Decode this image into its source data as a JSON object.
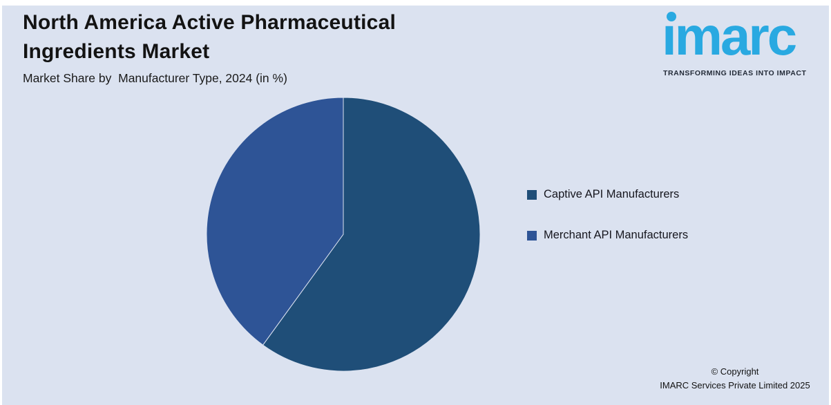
{
  "header": {
    "title": "North America Active Pharmaceutical Ingredients Market",
    "subtitle": "Market Share by  Manufacturer Type, 2024 (in %)"
  },
  "logo": {
    "wordmark": "imarc",
    "tagline": "TRANSFORMING IDEAS INTO IMPACT",
    "brand_color": "#29a9e1"
  },
  "chart_data": {
    "type": "pie",
    "title": "North America Active Pharmaceutical Ingredients Market",
    "subtitle": "Market Share by  Manufacturer Type, 2024 (in %)",
    "unit": "%",
    "year": "2024",
    "start_angle_deg": 0,
    "direction": "clockwise",
    "legend_position": "right",
    "labels_shown": false,
    "series": [
      {
        "name": "Captive API Manufacturers",
        "value": 60,
        "color": "#1f4e78"
      },
      {
        "name": "Merchant API Manufacturers",
        "value": 40,
        "color": "#2e5496"
      }
    ]
  },
  "footer": {
    "line1": "© Copyright",
    "line2": "IMARC Services Private Limited 2025"
  },
  "colors": {
    "background": "#dbe2f0",
    "frame": "#ffffff",
    "title_text": "#131313",
    "legend_text": "#16161e"
  }
}
